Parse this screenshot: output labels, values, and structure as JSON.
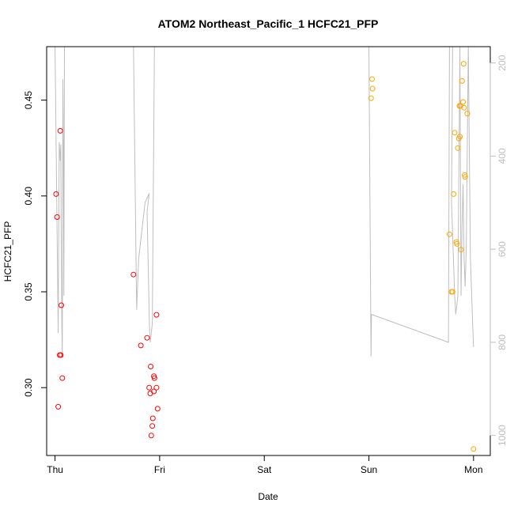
{
  "chart_data": {
    "type": "scatter",
    "title": "ATOM2 Northeast_Pacific_1 HCFC21_PFP",
    "xlabel": "Date",
    "ylabel": "HCFC21_PFP",
    "x_ticks": [
      "Thu",
      "Fri",
      "Sat",
      "Sun",
      "Mon"
    ],
    "x_range_days": [
      -0.08,
      4.16
    ],
    "ylim": [
      0.2646,
      0.4779
    ],
    "y_ticks": [
      "0.30",
      "0.35",
      "0.40",
      "0.45"
    ],
    "y_tick_values": [
      0.3,
      0.35,
      0.4,
      0.45
    ],
    "y2_ticks": [
      "200",
      "400",
      "600",
      "800",
      "1000"
    ],
    "y2_tick_values": [
      200,
      400,
      600,
      800,
      1000
    ],
    "y2lim": [
      1043,
      165
    ],
    "colors": {
      "red": "#ff0000",
      "orange": "#ffa500",
      "profile": "#bebebe",
      "axis": "#000000"
    },
    "series": [
      {
        "color": "#ff0000",
        "x": [
          0.01,
          0.02,
          0.03,
          0.045,
          0.05,
          0.055,
          0.06,
          0.07,
          0.75,
          0.82,
          0.88,
          0.9,
          0.91,
          0.915,
          0.92,
          0.93,
          0.935,
          0.945,
          0.95,
          0.97
        ],
        "y": [
          0.401,
          0.389,
          0.29,
          0.317,
          0.434,
          0.317,
          0.343,
          0.305,
          0.359,
          0.322,
          0.326,
          0.3,
          0.297,
          0.311,
          0.275,
          0.28,
          0.284,
          0.298,
          0.305,
          0.3
        ]
      },
      {
        "color": "#ff0000",
        "x": [
          0.945,
          0.97,
          0.98
        ],
        "y": [
          0.306,
          0.338,
          0.289
        ]
      },
      {
        "color": "#ffa500",
        "x": [
          3.02,
          3.03,
          3.035,
          3.77,
          3.79,
          3.8,
          3.81,
          3.82,
          3.835,
          3.84,
          3.85,
          3.86,
          3.865,
          3.87,
          3.875,
          3.88,
          3.89,
          3.9,
          3.905,
          3.91,
          3.915,
          3.92,
          3.94,
          4.0
        ],
        "y": [
          0.451,
          0.461,
          0.456,
          0.38,
          0.35,
          0.35,
          0.401,
          0.433,
          0.376,
          0.375,
          0.425,
          0.43,
          0.447,
          0.431,
          0.447,
          0.372,
          0.46,
          0.449,
          0.469,
          0.446,
          0.411,
          0.41,
          0.443,
          0.268
        ]
      }
    ],
    "profile_line": {
      "pressure": [
        165,
        780,
        370,
        410,
        375,
        600,
        760,
        830,
        235,
        380,
        700,
        165,
        165,
        160,
        165,
        730,
        620,
        500,
        480,
        520,
        740,
        780,
        800,
        760,
        165,
        165,
        165,
        160,
        830,
        740,
        800,
        165,
        160,
        500,
        700,
        740,
        700,
        165,
        700,
        550,
        460,
        620,
        680,
        600,
        165,
        620,
        750,
        810
      ],
      "x": [
        0.0,
        0.03,
        0.04,
        0.05,
        0.055,
        0.06,
        0.065,
        0.07,
        0.075,
        0.08,
        0.085,
        0.09,
        0.22,
        1.0,
        0.75,
        0.78,
        0.8,
        0.86,
        0.9,
        0.88,
        0.9,
        0.905,
        0.91,
        0.93,
        0.95,
        0.96,
        0.975,
        3.0,
        3.02,
        3.025,
        3.76,
        3.77,
        3.8,
        3.79,
        3.82,
        3.83,
        3.85,
        3.87,
        3.88,
        3.89,
        3.9,
        3.91,
        3.92,
        3.93,
        3.95,
        3.97,
        3.99,
        4.0
      ]
    }
  }
}
